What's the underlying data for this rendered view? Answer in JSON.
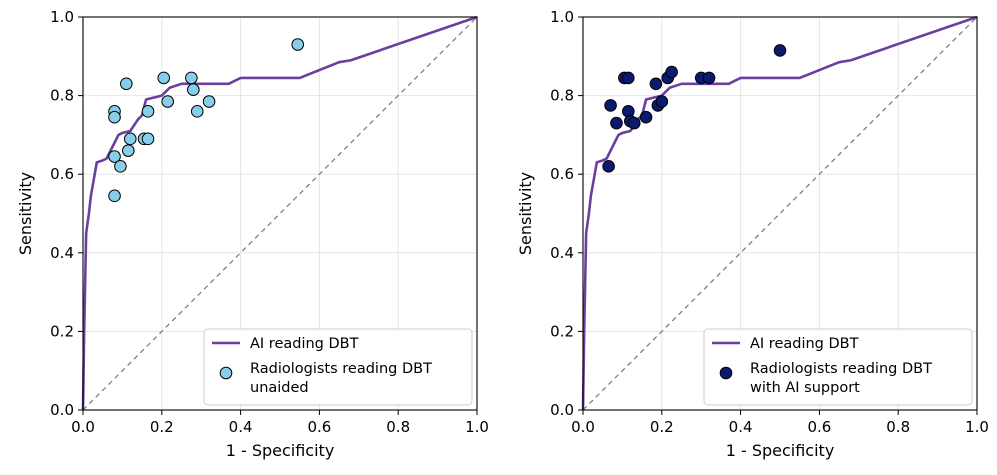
{
  "colors": {
    "roc": "#6a3fa0",
    "unaided_fill": "#87ceeb",
    "supported_fill": "#0b1a6e",
    "marker_edge": "#000000",
    "diagonal": "#808080",
    "grid": "#e6e6e6"
  },
  "chart_data": [
    {
      "type": "line",
      "xlabel": "1 - Specificity",
      "ylabel": "Sensitivity",
      "xlim": [
        0,
        1
      ],
      "ylim": [
        0,
        1
      ],
      "xticks": [
        "0.0",
        "0.2",
        "0.4",
        "0.6",
        "0.8",
        "1.0"
      ],
      "yticks": [
        "0.0",
        "0.2",
        "0.4",
        "0.6",
        "0.8",
        "1.0"
      ],
      "grid": true,
      "legend_position": "lower-right",
      "series": [
        {
          "name": "AI reading DBT",
          "kind": "line",
          "points": [
            [
              0,
              0
            ],
            [
              0.003,
              0.2
            ],
            [
              0.008,
              0.45
            ],
            [
              0.015,
              0.5
            ],
            [
              0.02,
              0.545
            ],
            [
              0.028,
              0.59
            ],
            [
              0.035,
              0.63
            ],
            [
              0.05,
              0.635
            ],
            [
              0.06,
              0.64
            ],
            [
              0.07,
              0.66
            ],
            [
              0.08,
              0.68
            ],
            [
              0.09,
              0.7
            ],
            [
              0.1,
              0.705
            ],
            [
              0.12,
              0.71
            ],
            [
              0.14,
              0.74
            ],
            [
              0.15,
              0.75
            ],
            [
              0.16,
              0.79
            ],
            [
              0.2,
              0.8
            ],
            [
              0.22,
              0.82
            ],
            [
              0.25,
              0.83
            ],
            [
              0.37,
              0.83
            ],
            [
              0.4,
              0.845
            ],
            [
              0.55,
              0.845
            ],
            [
              0.6,
              0.865
            ],
            [
              0.65,
              0.885
            ],
            [
              0.68,
              0.89
            ],
            [
              1.0,
              1.0
            ]
          ]
        },
        {
          "name": "Radiologists reading DBT unaided",
          "legend_lines": [
            "Radiologists reading DBT",
            "unaided"
          ],
          "kind": "scatter",
          "points": [
            [
              0.08,
              0.76
            ],
            [
              0.08,
              0.745
            ],
            [
              0.08,
              0.645
            ],
            [
              0.08,
              0.545
            ],
            [
              0.095,
              0.62
            ],
            [
              0.11,
              0.83
            ],
            [
              0.115,
              0.66
            ],
            [
              0.12,
              0.69
            ],
            [
              0.155,
              0.69
            ],
            [
              0.165,
              0.69
            ],
            [
              0.165,
              0.76
            ],
            [
              0.205,
              0.845
            ],
            [
              0.215,
              0.785
            ],
            [
              0.275,
              0.845
            ],
            [
              0.28,
              0.815
            ],
            [
              0.29,
              0.76
            ],
            [
              0.32,
              0.785
            ],
            [
              0.545,
              0.93
            ]
          ]
        }
      ]
    },
    {
      "type": "line",
      "xlabel": "1 - Specificity",
      "ylabel": "Sensitivity",
      "xlim": [
        0,
        1
      ],
      "ylim": [
        0,
        1
      ],
      "xticks": [
        "0.0",
        "0.2",
        "0.4",
        "0.6",
        "0.8",
        "1.0"
      ],
      "yticks": [
        "0.0",
        "0.2",
        "0.4",
        "0.6",
        "0.8",
        "1.0"
      ],
      "grid": true,
      "legend_position": "lower-right",
      "series": [
        {
          "name": "AI reading DBT",
          "kind": "line",
          "points": [
            [
              0,
              0
            ],
            [
              0.003,
              0.2
            ],
            [
              0.008,
              0.45
            ],
            [
              0.015,
              0.5
            ],
            [
              0.02,
              0.545
            ],
            [
              0.028,
              0.59
            ],
            [
              0.035,
              0.63
            ],
            [
              0.05,
              0.635
            ],
            [
              0.06,
              0.64
            ],
            [
              0.07,
              0.66
            ],
            [
              0.08,
              0.68
            ],
            [
              0.09,
              0.7
            ],
            [
              0.1,
              0.705
            ],
            [
              0.12,
              0.71
            ],
            [
              0.14,
              0.74
            ],
            [
              0.15,
              0.75
            ],
            [
              0.16,
              0.79
            ],
            [
              0.2,
              0.8
            ],
            [
              0.22,
              0.82
            ],
            [
              0.25,
              0.83
            ],
            [
              0.37,
              0.83
            ],
            [
              0.4,
              0.845
            ],
            [
              0.55,
              0.845
            ],
            [
              0.6,
              0.865
            ],
            [
              0.65,
              0.885
            ],
            [
              0.68,
              0.89
            ],
            [
              1.0,
              1.0
            ]
          ]
        },
        {
          "name": "Radiologists reading DBT with AI support",
          "legend_lines": [
            "Radiologists reading DBT",
            "with AI support"
          ],
          "kind": "scatter",
          "points": [
            [
              0.065,
              0.62
            ],
            [
              0.07,
              0.775
            ],
            [
              0.085,
              0.73
            ],
            [
              0.105,
              0.845
            ],
            [
              0.115,
              0.845
            ],
            [
              0.115,
              0.76
            ],
            [
              0.12,
              0.735
            ],
            [
              0.13,
              0.73
            ],
            [
              0.16,
              0.745
            ],
            [
              0.185,
              0.83
            ],
            [
              0.19,
              0.775
            ],
            [
              0.2,
              0.785
            ],
            [
              0.215,
              0.845
            ],
            [
              0.225,
              0.86
            ],
            [
              0.3,
              0.845
            ],
            [
              0.32,
              0.845
            ],
            [
              0.5,
              0.915
            ]
          ]
        }
      ]
    }
  ]
}
